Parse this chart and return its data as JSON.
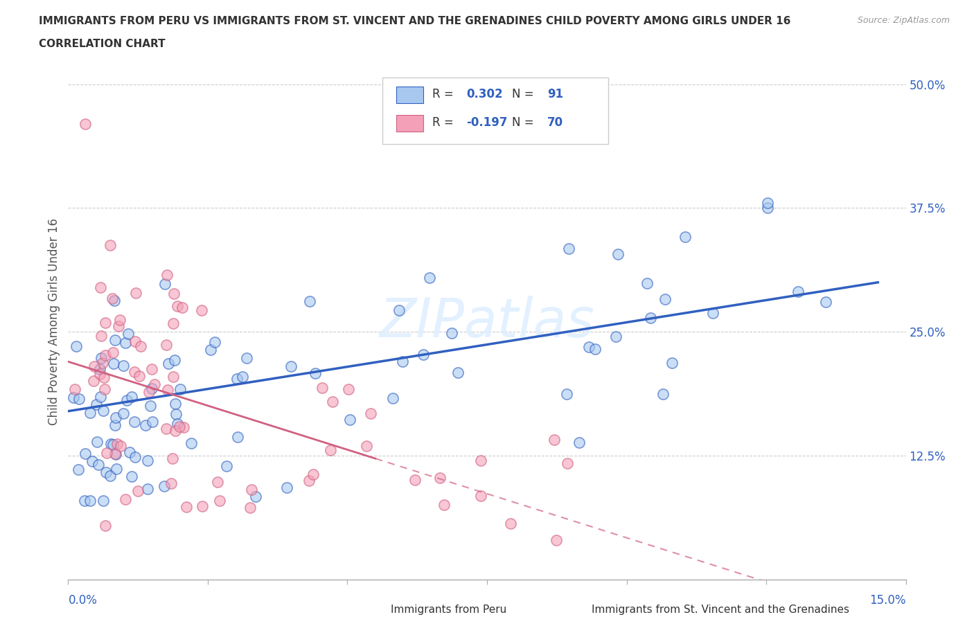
{
  "title_line1": "IMMIGRANTS FROM PERU VS IMMIGRANTS FROM ST. VINCENT AND THE GRENADINES CHILD POVERTY AMONG GIRLS UNDER 16",
  "title_line2": "CORRELATION CHART",
  "source": "Source: ZipAtlas.com",
  "ylabel": "Child Poverty Among Girls Under 16",
  "R_peru": 0.302,
  "N_peru": 91,
  "R_svg": -0.197,
  "N_svg": 70,
  "color_peru": "#a8c8f0",
  "color_svg": "#f4a0b8",
  "line_color_peru": "#3060c0",
  "line_color_svg": "#d06080",
  "xlim": [
    0.0,
    0.15
  ],
  "ylim": [
    0.0,
    0.52
  ],
  "ytick_vals": [
    0.0,
    0.125,
    0.25,
    0.375,
    0.5
  ],
  "ytick_labels": [
    "",
    "12.5%",
    "25.0%",
    "37.5%",
    "50.0%"
  ],
  "watermark_text": "ZIPatlas"
}
